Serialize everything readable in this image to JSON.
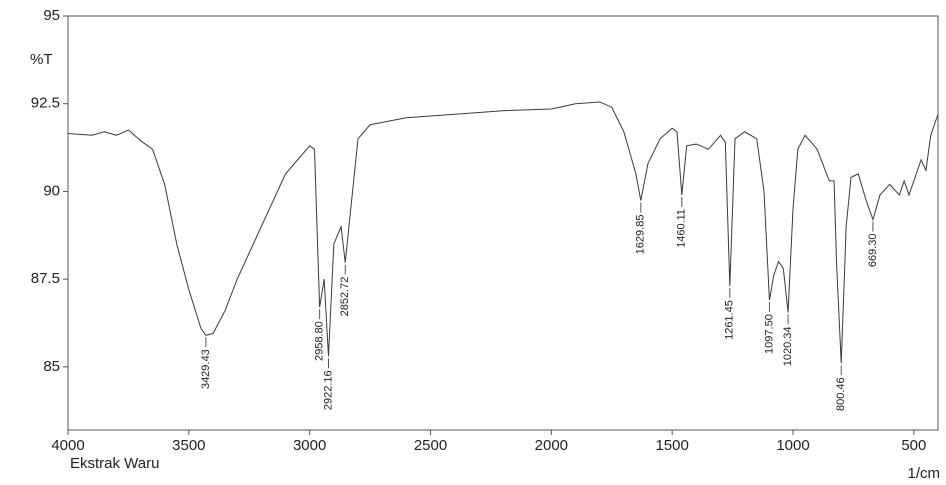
{
  "chart_data": {
    "type": "line",
    "x_axis_label": "1/cm",
    "y_axis_label": "%T",
    "sample_label": "Ekstrak Waru",
    "color": "#3a3a3a",
    "xlim": [
      4000,
      400
    ],
    "ylim": [
      83.2,
      95
    ],
    "xticks": [
      4000,
      3500,
      3000,
      2500,
      2000,
      1500,
      1000,
      500
    ],
    "yticks": [
      95,
      92.5,
      90,
      87.5,
      85
    ],
    "x": [
      4000,
      3900,
      3850,
      3800,
      3750,
      3700,
      3650,
      3600,
      3550,
      3500,
      3450,
      3429.43,
      3400,
      3350,
      3300,
      3200,
      3100,
      3000,
      2980,
      2958.8,
      2940,
      2922.16,
      2900,
      2870,
      2852.72,
      2830,
      2800,
      2750,
      2600,
      2400,
      2200,
      2000,
      1900,
      1800,
      1750,
      1700,
      1650,
      1629.85,
      1600,
      1550,
      1500,
      1480,
      1460.11,
      1440,
      1400,
      1350,
      1300,
      1280,
      1261.45,
      1240,
      1200,
      1150,
      1120,
      1097.5,
      1080,
      1060,
      1040,
      1020.34,
      1000,
      980,
      950,
      900,
      850,
      830,
      820,
      800.46,
      780,
      760,
      730,
      700,
      669.3,
      640,
      600,
      560,
      540,
      520,
      500,
      470,
      450,
      430,
      410,
      400
    ],
    "values": [
      91.65,
      91.6,
      91.7,
      91.6,
      91.75,
      91.45,
      91.2,
      90.2,
      88.5,
      87.2,
      86.1,
      85.9,
      85.95,
      86.6,
      87.5,
      89.0,
      90.5,
      91.3,
      91.2,
      86.7,
      87.5,
      85.3,
      88.5,
      89.0,
      87.97,
      89.5,
      91.5,
      91.9,
      92.1,
      92.2,
      92.3,
      92.35,
      92.5,
      92.55,
      92.4,
      91.7,
      90.5,
      89.74,
      90.8,
      91.5,
      91.8,
      91.7,
      89.9,
      91.3,
      91.35,
      91.2,
      91.6,
      91.4,
      87.3,
      91.5,
      91.7,
      91.5,
      90.0,
      86.9,
      87.6,
      88.0,
      87.8,
      86.55,
      89.5,
      91.2,
      91.6,
      91.2,
      90.3,
      90.3,
      88.0,
      85.1,
      89.0,
      90.4,
      90.5,
      89.8,
      89.2,
      89.9,
      90.2,
      89.9,
      90.3,
      89.9,
      90.3,
      90.9,
      90.6,
      91.6,
      92.0,
      92.2
    ],
    "peaks": [
      {
        "x": 3429.43,
        "y": 85.9,
        "label": "3429.43"
      },
      {
        "x": 2958.8,
        "y": 86.7,
        "label": "2958.80"
      },
      {
        "x": 2922.16,
        "y": 85.3,
        "label": "2922.16"
      },
      {
        "x": 2852.72,
        "y": 87.97,
        "label": "2852.72"
      },
      {
        "x": 1629.85,
        "y": 89.74,
        "label": "1629.85"
      },
      {
        "x": 1460.11,
        "y": 89.9,
        "label": "1460.11"
      },
      {
        "x": 1261.45,
        "y": 87.3,
        "label": "1261.45"
      },
      {
        "x": 1097.5,
        "y": 86.9,
        "label": "1097.50"
      },
      {
        "x": 1020.34,
        "y": 86.55,
        "label": "1020.34"
      },
      {
        "x": 800.46,
        "y": 85.1,
        "label": "800.46"
      },
      {
        "x": 669.3,
        "y": 89.2,
        "label": "669.30"
      }
    ]
  }
}
